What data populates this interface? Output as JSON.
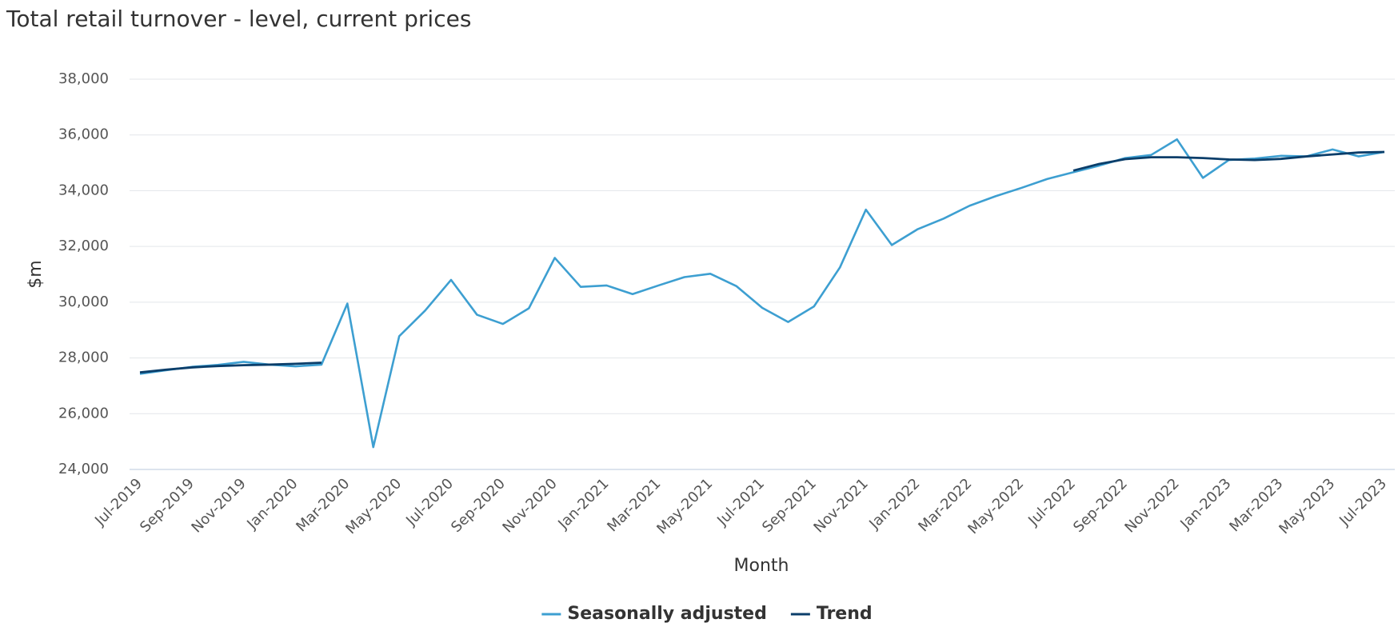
{
  "chart_data": {
    "type": "line",
    "title": "Total retail turnover - level, current prices",
    "x_label": "Month",
    "y_label": "$m",
    "categories": [
      "Jul-2019",
      null,
      "Sep-2019",
      null,
      "Nov-2019",
      null,
      "Jan-2020",
      null,
      "Mar-2020",
      null,
      "May-2020",
      null,
      "Jul-2020",
      null,
      "Sep-2020",
      null,
      "Nov-2020",
      null,
      "Jan-2021",
      null,
      "Mar-2021",
      null,
      "May-2021",
      null,
      "Jul-2021",
      null,
      "Sep-2021",
      null,
      "Nov-2021",
      null,
      "Jan-2022",
      null,
      "Mar-2022",
      null,
      "May-2022",
      null,
      "Jul-2022",
      null,
      "Sep-2022",
      null,
      "Nov-2022",
      null,
      "Jan-2023",
      null,
      "Mar-2023",
      null,
      "May-2023",
      null,
      "Jul-2023"
    ],
    "series": [
      {
        "name": "Seasonally adjusted",
        "color": "#3d9fd1",
        "values": [
          27430,
          27560,
          27680,
          27750,
          27860,
          27760,
          27700,
          27760,
          29950,
          24800,
          28780,
          29700,
          30800,
          29550,
          29220,
          29780,
          31590,
          30550,
          30600,
          30290,
          30600,
          30900,
          31020,
          30580,
          29800,
          29290,
          29850,
          31250,
          33320,
          32050,
          32620,
          33000,
          33460,
          33800,
          34100,
          34420,
          34660,
          34900,
          35170,
          35280,
          35840,
          34460,
          35100,
          35150,
          35250,
          35230,
          35480,
          35230,
          35390
        ]
      },
      {
        "name": "Trend",
        "color": "#0b3e6a",
        "values": [
          27480,
          27580,
          27660,
          27710,
          27740,
          27760,
          27790,
          27830,
          null,
          null,
          null,
          null,
          null,
          null,
          null,
          null,
          null,
          null,
          null,
          null,
          null,
          null,
          null,
          null,
          null,
          null,
          null,
          null,
          null,
          null,
          null,
          null,
          null,
          null,
          null,
          null,
          34720,
          34960,
          35130,
          35200,
          35200,
          35170,
          35120,
          35100,
          35140,
          35230,
          35300,
          35370,
          35390
        ]
      }
    ],
    "ylim": [
      24000,
      38000
    ],
    "yticks": [
      {
        "value": 24000,
        "label": "24,000"
      },
      {
        "value": 26000,
        "label": "26,000"
      },
      {
        "value": 28000,
        "label": "28,000"
      },
      {
        "value": 30000,
        "label": "30,000"
      },
      {
        "value": 32000,
        "label": "32,000"
      },
      {
        "value": 34000,
        "label": "34,000"
      },
      {
        "value": 36000,
        "label": "36,000"
      },
      {
        "value": 38000,
        "label": "38,000"
      }
    ],
    "grid": true,
    "legend": "bottom"
  }
}
